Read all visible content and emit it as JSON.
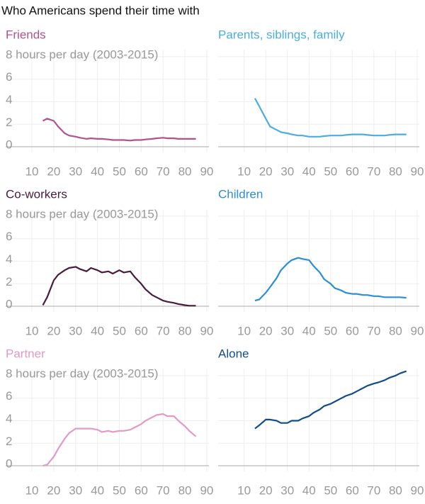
{
  "title": "Who Americans spend their time with",
  "chart_data": [
    {
      "type": "line",
      "title": "Friends",
      "color": "#b4518b",
      "grid": true,
      "show_ytick_labels": true,
      "xlim": [
        -2,
        91
      ],
      "xticks": [
        10,
        20,
        30,
        40,
        50,
        60,
        70,
        80,
        90
      ],
      "ylim": [
        -0.5,
        8.6
      ],
      "yticks": [
        0,
        2,
        4,
        6,
        {
          "value": 8,
          "label": "8 hours per day (2003-2015)"
        }
      ],
      "x": [
        15,
        17,
        20,
        22,
        25,
        27,
        30,
        32,
        35,
        37,
        40,
        42,
        45,
        47,
        50,
        52,
        55,
        57,
        60,
        62,
        65,
        67,
        70,
        72,
        75,
        77,
        80,
        82,
        85
      ],
      "values": [
        2.3,
        2.5,
        2.3,
        1.8,
        1.2,
        1.0,
        0.9,
        0.8,
        0.7,
        0.75,
        0.7,
        0.7,
        0.65,
        0.6,
        0.6,
        0.6,
        0.55,
        0.6,
        0.6,
        0.65,
        0.7,
        0.75,
        0.8,
        0.75,
        0.75,
        0.7,
        0.7,
        0.7,
        0.7
      ]
    },
    {
      "type": "line",
      "title": "Parents, siblings, family",
      "color": "#4aaee0",
      "grid": true,
      "show_ytick_labels": false,
      "xlim": [
        -2,
        91
      ],
      "xticks": [
        10,
        20,
        30,
        40,
        50,
        60,
        70,
        80,
        90
      ],
      "ylim": [
        -0.5,
        8.6
      ],
      "yticks": [
        0,
        2,
        4,
        6,
        8
      ],
      "x": [
        15,
        17,
        20,
        22,
        25,
        27,
        30,
        32,
        35,
        37,
        40,
        42,
        45,
        47,
        50,
        52,
        55,
        57,
        60,
        62,
        65,
        67,
        70,
        72,
        75,
        77,
        80,
        82,
        85
      ],
      "values": [
        4.3,
        3.6,
        2.5,
        1.8,
        1.5,
        1.3,
        1.2,
        1.1,
        1.0,
        1.0,
        0.9,
        0.9,
        0.9,
        0.95,
        1.0,
        1.0,
        1.0,
        1.05,
        1.1,
        1.1,
        1.1,
        1.05,
        1.0,
        1.0,
        1.0,
        1.05,
        1.1,
        1.1,
        1.1
      ]
    },
    {
      "type": "line",
      "title": "Co-workers",
      "color": "#4a1a3c",
      "grid": true,
      "show_ytick_labels": true,
      "xlim": [
        -2,
        91
      ],
      "xticks": [
        10,
        20,
        30,
        40,
        50,
        60,
        70,
        80,
        90
      ],
      "ylim": [
        -0.5,
        8.6
      ],
      "yticks": [
        0,
        2,
        4,
        6,
        {
          "value": 8,
          "label": "8 hours per day (2003-2015)"
        }
      ],
      "x": [
        15,
        17,
        20,
        22,
        25,
        27,
        30,
        32,
        35,
        37,
        40,
        42,
        45,
        47,
        50,
        52,
        55,
        57,
        60,
        62,
        65,
        67,
        70,
        72,
        75,
        77,
        80,
        82,
        85
      ],
      "values": [
        0.1,
        0.8,
        2.3,
        2.8,
        3.2,
        3.4,
        3.5,
        3.3,
        3.1,
        3.4,
        3.2,
        3.0,
        3.1,
        2.9,
        3.2,
        3.0,
        3.1,
        2.6,
        2.0,
        1.5,
        1.0,
        0.8,
        0.5,
        0.4,
        0.3,
        0.2,
        0.1,
        0.05,
        0.05
      ]
    },
    {
      "type": "line",
      "title": "Children",
      "color": "#2a8fd6",
      "grid": true,
      "show_ytick_labels": false,
      "xlim": [
        -2,
        91
      ],
      "xticks": [
        10,
        20,
        30,
        40,
        50,
        60,
        70,
        80,
        90
      ],
      "ylim": [
        -0.5,
        8.6
      ],
      "yticks": [
        0,
        2,
        4,
        6,
        8
      ],
      "x": [
        15,
        17,
        20,
        22,
        25,
        27,
        30,
        32,
        35,
        37,
        40,
        42,
        45,
        47,
        50,
        52,
        55,
        57,
        60,
        62,
        65,
        67,
        70,
        72,
        75,
        77,
        80,
        82,
        85
      ],
      "values": [
        0.5,
        0.6,
        1.2,
        1.7,
        2.5,
        3.2,
        3.8,
        4.1,
        4.3,
        4.2,
        4.1,
        3.6,
        3.0,
        2.4,
        2.0,
        1.6,
        1.4,
        1.2,
        1.1,
        1.1,
        1.0,
        1.0,
        0.9,
        0.9,
        0.8,
        0.8,
        0.8,
        0.8,
        0.75
      ]
    },
    {
      "type": "line",
      "title": "Partner",
      "color": "#e29ac6",
      "grid": true,
      "show_ytick_labels": true,
      "xlim": [
        -2,
        91
      ],
      "xticks": [
        10,
        20,
        30,
        40,
        50,
        60,
        70,
        80,
        90
      ],
      "ylim": [
        -0.5,
        8.6
      ],
      "yticks": [
        0,
        2,
        4,
        6,
        {
          "value": 8,
          "label": "8 hours per day (2003-2015)"
        }
      ],
      "x": [
        15,
        17,
        20,
        22,
        25,
        27,
        30,
        32,
        35,
        37,
        40,
        42,
        45,
        47,
        50,
        52,
        55,
        57,
        60,
        62,
        65,
        67,
        70,
        72,
        75,
        77,
        80,
        82,
        85
      ],
      "values": [
        0,
        0.1,
        0.8,
        1.5,
        2.4,
        2.9,
        3.3,
        3.3,
        3.3,
        3.3,
        3.2,
        3.0,
        3.1,
        3.0,
        3.1,
        3.1,
        3.2,
        3.4,
        3.7,
        4.0,
        4.3,
        4.5,
        4.6,
        4.4,
        4.4,
        4.0,
        3.5,
        3.1,
        2.6
      ]
    },
    {
      "type": "line",
      "title": "Alone",
      "color": "#104e8b",
      "grid": true,
      "show_ytick_labels": false,
      "xlim": [
        -2,
        91
      ],
      "xticks": [
        10,
        20,
        30,
        40,
        50,
        60,
        70,
        80,
        90
      ],
      "ylim": [
        -0.5,
        8.6
      ],
      "yticks": [
        0,
        2,
        4,
        6,
        8
      ],
      "x": [
        15,
        17,
        20,
        22,
        25,
        27,
        30,
        32,
        35,
        37,
        40,
        42,
        45,
        47,
        50,
        52,
        55,
        57,
        60,
        62,
        65,
        67,
        70,
        72,
        75,
        77,
        80,
        82,
        85
      ],
      "values": [
        3.3,
        3.6,
        4.1,
        4.1,
        4.0,
        3.8,
        3.8,
        4.0,
        4.0,
        4.2,
        4.4,
        4.7,
        5.0,
        5.3,
        5.5,
        5.7,
        6.0,
        6.2,
        6.4,
        6.6,
        6.9,
        7.1,
        7.3,
        7.4,
        7.6,
        7.8,
        8.0,
        8.2,
        8.4
      ]
    }
  ]
}
